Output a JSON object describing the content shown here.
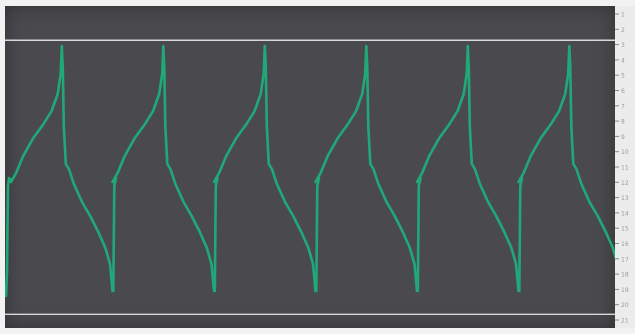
{
  "scope": {
    "trace_color": "#20a878",
    "screen_color": "#4a4a4e",
    "reference_line_color": "#d8d8d8",
    "ruler_tick_color": "#8a8a8a",
    "ruler_label_color": "#9a9a9a",
    "reference_levels": {
      "upper": 1,
      "lower": -1
    },
    "cycles": 6,
    "ruler_labels": [
      "1",
      "2",
      "3",
      "4",
      "5",
      "6",
      "7",
      "8",
      "9",
      "10",
      "11",
      "12",
      "13",
      "14",
      "15",
      "16",
      "17",
      "18",
      "19",
      "20",
      "21"
    ]
  }
}
